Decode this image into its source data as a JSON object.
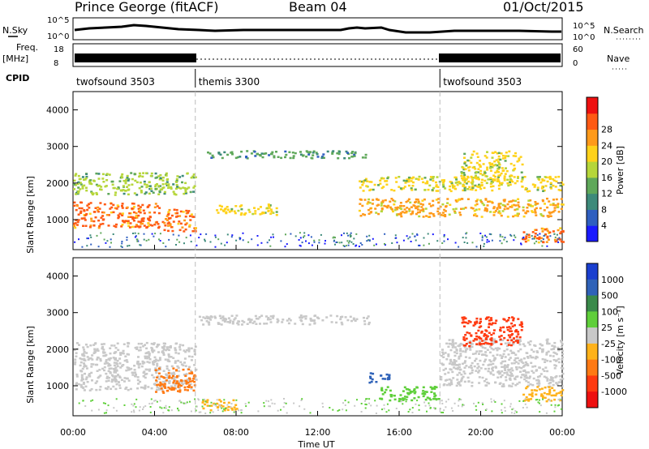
{
  "header": {
    "station": "Prince George (fitACF)",
    "beam": "Beam 04",
    "date": "01/Oct/2015"
  },
  "status_panel": {
    "nsky_label": "N.Sky",
    "nsky_tick_top": "10^5",
    "nsky_tick_bottom": "10^0",
    "nsearch_tick_top": "10^5",
    "nsearch_tick_bottom": "10^0",
    "nsearch_label": "N.Search",
    "freq_label": "Freq.",
    "freq_unit": "[MHz]",
    "freq_tick_top": "18",
    "freq_tick_bottom": "8",
    "nave_tick_top": "60",
    "nave_tick_bottom": "0",
    "nave_label": "Nave",
    "cpid_label": "CPID",
    "cpid_segments": [
      {
        "name": "twofsound 3503",
        "start_h": 0,
        "end_h": 6
      },
      {
        "name": "themis 3300",
        "start_h": 6,
        "end_h": 18
      },
      {
        "name": "twofsound 3503",
        "start_h": 18,
        "end_h": 24
      }
    ]
  },
  "chart_data": [
    {
      "type": "heatmap",
      "quantity": "Power",
      "ylabel": "Slant Range [km]",
      "xlim": [
        0,
        24
      ],
      "ylim": [
        180,
        4500
      ],
      "y_ticks": [
        "1000",
        "2000",
        "3000",
        "4000"
      ],
      "colorbar": {
        "label": "Power [dB]",
        "ticks": [
          "4",
          "8",
          "12",
          "16",
          "20",
          "24",
          "28"
        ],
        "colors": [
          "#1a1aff",
          "#2f5fc0",
          "#3d8a7a",
          "#5fa85a",
          "#b6d63a",
          "#ffd21a",
          "#ff9a1a",
          "#ff5a14",
          "#ee1010"
        ]
      },
      "features": [
        {
          "t": [
            0,
            4.2
          ],
          "r": [
            800,
            1500
          ],
          "power_db": 28
        },
        {
          "t": [
            0,
            6
          ],
          "r": [
            1700,
            2300
          ],
          "power_db": 15
        },
        {
          "t": [
            4.3,
            6
          ],
          "r": [
            700,
            1300
          ],
          "power_db": 26
        },
        {
          "t": [
            7,
            10
          ],
          "r": [
            1150,
            1450
          ],
          "power_db": 18
        },
        {
          "t": [
            6.5,
            14.5
          ],
          "r": [
            2700,
            2900
          ],
          "power_db": 12
        },
        {
          "t": [
            14,
            24
          ],
          "r": [
            1100,
            1600
          ],
          "power_db": 24
        },
        {
          "t": [
            14,
            24
          ],
          "r": [
            1800,
            2200
          ],
          "power_db": 18
        },
        {
          "t": [
            19,
            22
          ],
          "r": [
            2100,
            2900
          ],
          "power_db": 20
        },
        {
          "t": [
            22,
            24
          ],
          "r": [
            400,
            800
          ],
          "power_db": 27
        }
      ]
    },
    {
      "type": "heatmap",
      "quantity": "Velocity",
      "xlabel": "Time UT",
      "ylabel": "Slant Range [km]",
      "x_ticks": [
        "00:00",
        "04:00",
        "08:00",
        "12:00",
        "16:00",
        "20:00",
        "00:00"
      ],
      "xlim": [
        0,
        24
      ],
      "ylim": [
        180,
        4500
      ],
      "y_ticks": [
        "1000",
        "2000",
        "3000",
        "4000"
      ],
      "colorbar": {
        "label": "Velocity [m s⁻¹]",
        "ticks": [
          "1000",
          "500",
          "100",
          "25",
          "-25",
          "-100",
          "-500",
          "-1000"
        ],
        "colors": [
          "#1a3fcf",
          "#2f62b8",
          "#3a8a4a",
          "#5fcf3a",
          "#c8c8c8",
          "#ffb21a",
          "#ff7a14",
          "#ff3a10",
          "#ee1010"
        ]
      },
      "features": [
        {
          "t": [
            0,
            6
          ],
          "r": [
            900,
            2200
          ],
          "velocity": 0
        },
        {
          "t": [
            4,
            6
          ],
          "r": [
            800,
            1500
          ],
          "velocity": -300
        },
        {
          "t": [
            6.3,
            8
          ],
          "r": [
            350,
            650
          ],
          "velocity": -200
        },
        {
          "t": [
            6,
            14.5
          ],
          "r": [
            2700,
            2950
          ],
          "velocity": 0
        },
        {
          "t": [
            14.5,
            15.5
          ],
          "r": [
            1100,
            1400
          ],
          "velocity": 600
        },
        {
          "t": [
            15,
            18
          ],
          "r": [
            600,
            1000
          ],
          "velocity": 120
        },
        {
          "t": [
            18,
            24
          ],
          "r": [
            1000,
            2300
          ],
          "velocity": 0
        },
        {
          "t": [
            19,
            22
          ],
          "r": [
            2100,
            2900
          ],
          "velocity": -700
        },
        {
          "t": [
            22,
            24
          ],
          "r": [
            600,
            1000
          ],
          "velocity": -200
        }
      ]
    }
  ]
}
